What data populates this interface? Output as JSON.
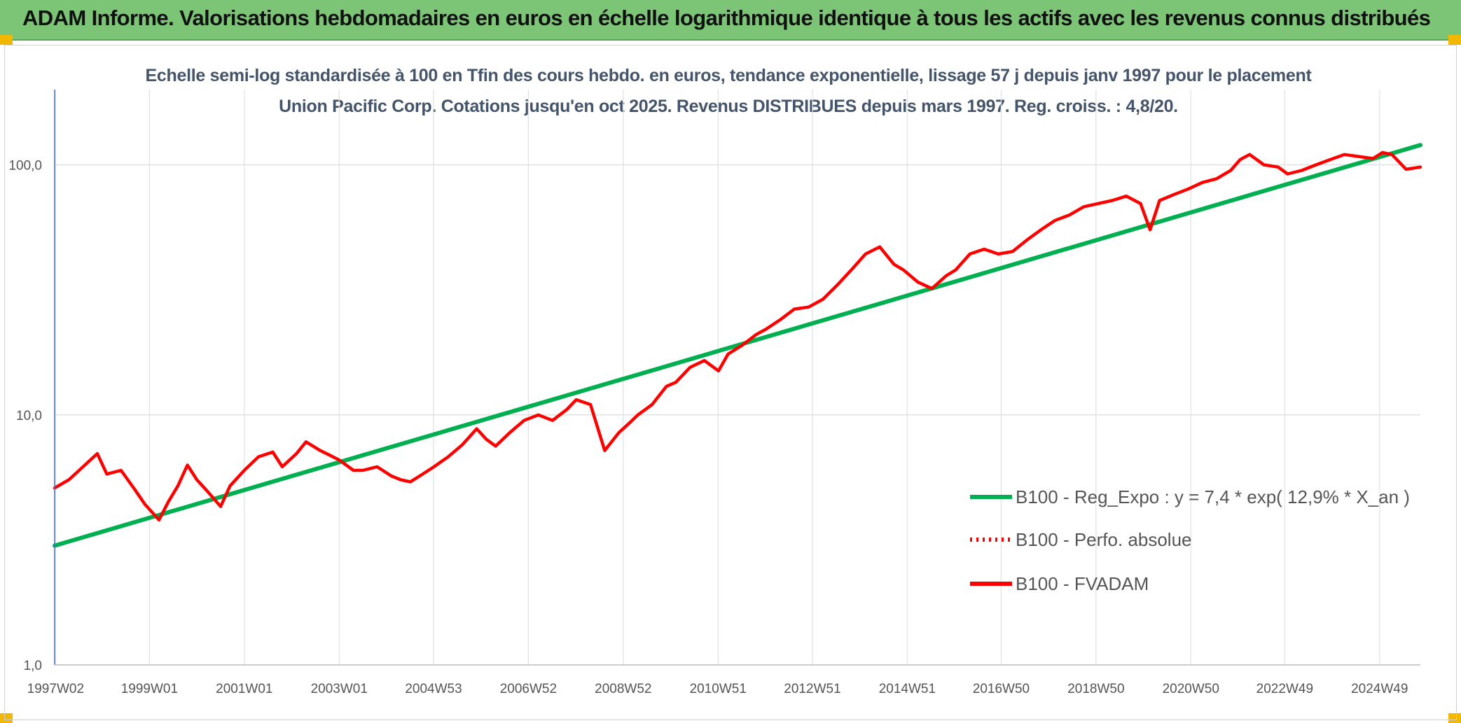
{
  "banner": {
    "title": "ADAM Informe. Valorisations hebdomadaires en euros en échelle logarithmique identique à tous les actifs avec les revenus connus distribués"
  },
  "chart_data": {
    "type": "line",
    "title": "Echelle semi-log standardisée à 100 en Tfin des cours hebdo. en euros, tendance exponentielle, lissage 57 j depuis janv 1997 pour le placement Union Pacific Corp. Cotations jusqu'en oct 2025. Revenus DISTRIBUES depuis mars 1997. Reg. croiss. : 4,8/20.",
    "y_scale": "log",
    "ylim": [
      1,
      200
    ],
    "xlim": [
      1997.0,
      2025.8
    ],
    "y_ticks": [
      1,
      10,
      100
    ],
    "y_tick_labels": [
      "1,0",
      "10,0",
      "100,0"
    ],
    "x_ticks": [
      1997.02,
      1999.0,
      2001.0,
      2003.0,
      2004.99,
      2006.99,
      2008.99,
      2010.99,
      2012.98,
      2014.98,
      2016.96,
      2018.96,
      2020.96,
      2022.94,
      2024.94
    ],
    "x_tick_labels": [
      "1997W02",
      "1999W01",
      "2001W01",
      "2003W01",
      "2004W53",
      "2006W52",
      "2008W52",
      "2010W51",
      "2012W51",
      "2014W51",
      "2016W50",
      "2018W50",
      "2020W50",
      "2022W49",
      "2024W49"
    ],
    "grid": true,
    "legend_position": "right",
    "series": [
      {
        "name": "B100 - Reg_Expo : y = 7,4 * exp( 12,9% *  X_an )",
        "color": "#00b050",
        "style": "solid",
        "x": [
          1997.0,
          2025.8
        ],
        "y": [
          3.0,
          120.0
        ]
      },
      {
        "name": "B100 - Perfo. absolue",
        "color": "#ff0000",
        "style": "dotted",
        "x": [],
        "y": []
      },
      {
        "name": "B100 - FVADAM",
        "color": "#ff0000",
        "style": "solid",
        "x": [
          1997.0,
          1997.3,
          1997.6,
          1997.9,
          1998.1,
          1998.4,
          1998.7,
          1998.9,
          1999.2,
          1999.4,
          1999.6,
          1999.8,
          2000.0,
          2000.2,
          2000.5,
          2000.7,
          2001.0,
          2001.3,
          2001.6,
          2001.8,
          2002.1,
          2002.3,
          2002.6,
          2002.8,
          2003.0,
          2003.3,
          2003.5,
          2003.8,
          2004.1,
          2004.3,
          2004.5,
          2004.7,
          2005.0,
          2005.3,
          2005.6,
          2005.9,
          2006.1,
          2006.3,
          2006.6,
          2006.9,
          2007.2,
          2007.5,
          2007.8,
          2008.0,
          2008.3,
          2008.6,
          2008.9,
          2009.1,
          2009.3,
          2009.6,
          2009.9,
          2010.1,
          2010.4,
          2010.7,
          2011.0,
          2011.2,
          2011.5,
          2011.8,
          2012.0,
          2012.3,
          2012.6,
          2012.9,
          2013.2,
          2013.5,
          2013.8,
          2014.1,
          2014.4,
          2014.7,
          2014.9,
          2015.2,
          2015.5,
          2015.8,
          2016.0,
          2016.3,
          2016.6,
          2016.9,
          2017.2,
          2017.5,
          2017.8,
          2018.1,
          2018.4,
          2018.7,
          2019.0,
          2019.3,
          2019.6,
          2019.9,
          2020.1,
          2020.3,
          2020.6,
          2020.9,
          2021.2,
          2021.5,
          2021.8,
          2022.0,
          2022.2,
          2022.5,
          2022.8,
          2023.0,
          2023.3,
          2023.6,
          2023.9,
          2024.2,
          2024.5,
          2024.8,
          2025.0,
          2025.2,
          2025.5,
          2025.8
        ],
        "y": [
          5.1,
          5.5,
          6.2,
          7.0,
          5.8,
          6.0,
          5.0,
          4.4,
          3.8,
          4.5,
          5.2,
          6.3,
          5.5,
          5.0,
          4.3,
          5.2,
          6.0,
          6.8,
          7.1,
          6.2,
          7.0,
          7.8,
          7.2,
          6.9,
          6.6,
          6.0,
          6.0,
          6.2,
          5.7,
          5.5,
          5.4,
          5.7,
          6.2,
          6.8,
          7.6,
          8.8,
          8.0,
          7.5,
          8.5,
          9.5,
          10.0,
          9.5,
          10.5,
          11.5,
          11.0,
          7.2,
          8.5,
          9.2,
          10.0,
          11.0,
          13.0,
          13.5,
          15.5,
          16.5,
          15.0,
          17.5,
          19.0,
          21.0,
          22.0,
          24.0,
          26.5,
          27.0,
          29.0,
          33.0,
          38.0,
          44.0,
          47.0,
          40.0,
          38.0,
          34.0,
          32.0,
          36.0,
          38.0,
          44.0,
          46.0,
          44.0,
          45.0,
          50.0,
          55.0,
          60.0,
          63.0,
          68.0,
          70.0,
          72.0,
          75.0,
          70.0,
          55.0,
          72.0,
          76.0,
          80.0,
          85.0,
          88.0,
          95.0,
          105.0,
          110.0,
          100.0,
          98.0,
          92.0,
          95.0,
          100.0,
          105.0,
          110.0,
          108.0,
          106.0,
          112.0,
          110.0,
          96.0,
          98.0
        ]
      }
    ]
  }
}
